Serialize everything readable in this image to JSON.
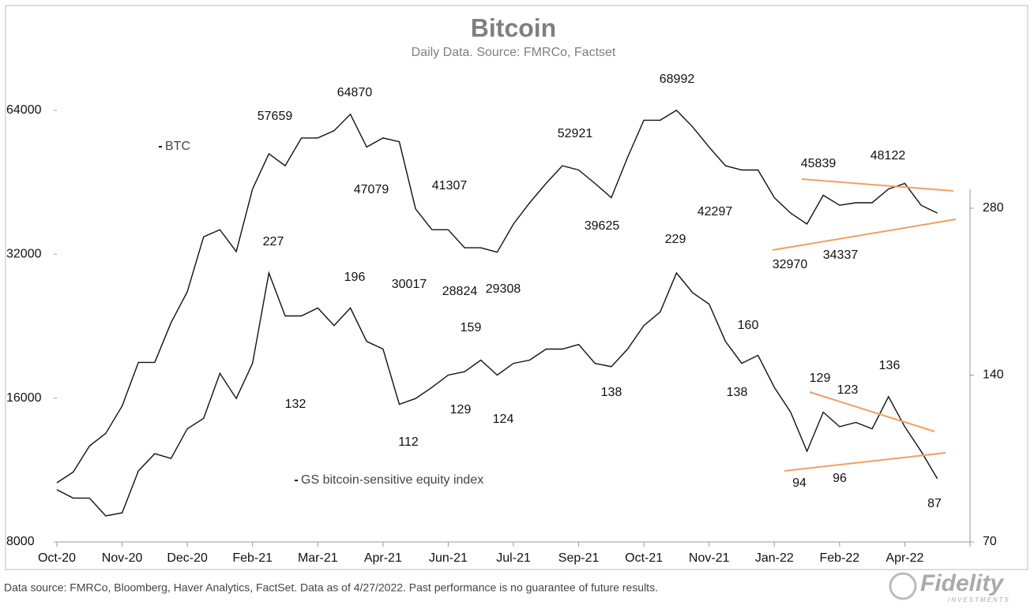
{
  "chart_data": {
    "type": "line",
    "title": "Bitcoin",
    "subtitle": "Daily Data. Source: FMRCo, Factset",
    "categories": [
      "Oct-20",
      null,
      null,
      null,
      "Nov-20",
      null,
      null,
      null,
      "Dec-20",
      null,
      null,
      null,
      "Feb-21",
      null,
      null,
      null,
      "Mar-21",
      null,
      null,
      null,
      "Apr-21",
      null,
      null,
      null,
      "Jun-21",
      null,
      null,
      null,
      "Jul-21",
      null,
      null,
      null,
      "Sep-21",
      null,
      null,
      null,
      "Oct-21",
      null,
      null,
      null,
      "Nov-21",
      null,
      null,
      null,
      "Jan-22",
      null,
      null,
      null,
      "Feb-22",
      null,
      null,
      null,
      "Apr-22",
      null,
      null,
      null,
      null
    ],
    "series": [
      {
        "name": "BTC",
        "color": "#111111",
        "values": [
          10640,
          11200,
          12700,
          13500,
          15400,
          19000,
          19000,
          23000,
          26700,
          34800,
          36000,
          32400,
          43800,
          51900,
          49000,
          56000,
          56000,
          58000,
          62800,
          53600,
          56000,
          55000,
          39800,
          36000,
          36000,
          33000,
          33000,
          32300,
          37000,
          41000,
          45000,
          49000,
          48000,
          45000,
          42000,
          51000,
          61000,
          61000,
          64000,
          59000,
          53600,
          49000,
          48000,
          48000,
          42000,
          39000,
          37000,
          42500,
          40500,
          41000,
          41000,
          43800,
          45000,
          40500,
          39000,
          null,
          null
        ]
      },
      {
        "name": "GS bitcoin-sensitive equity index",
        "color": "#111111",
        "axis": "y2",
        "values": [
          87,
          84,
          84,
          78,
          79,
          94,
          101,
          99,
          112,
          117,
          141,
          127,
          147,
          214,
          179,
          179,
          185,
          172,
          185,
          161,
          156,
          124,
          127,
          133,
          140,
          142,
          149,
          140,
          147,
          149,
          156,
          156,
          159,
          147,
          145,
          156,
          172,
          182,
          214,
          197,
          188,
          161,
          147,
          152,
          133,
          120,
          102,
          120,
          113,
          115,
          112,
          128,
          113,
          102,
          91,
          null,
          null
        ]
      }
    ],
    "ylim": [
      8000,
      106000
    ],
    "yticks": [
      8000,
      16000,
      32000,
      64000
    ],
    "y_log_scale": true,
    "y2lim": [
      70,
      650
    ],
    "y2ticks": [
      70,
      140,
      280
    ],
    "y2_log_scale": true,
    "annotations": [
      57659,
      64870,
      47079,
      41307,
      30017,
      28824,
      29308,
      52921,
      39625,
      68992,
      42297,
      45839,
      48122,
      32970,
      34337,
      227,
      196,
      132,
      112,
      159,
      129,
      124,
      138,
      229,
      160,
      138,
      129,
      123,
      136,
      94,
      96,
      87
    ],
    "trend_line_color": "#f0a060"
  },
  "footer": {
    "note": "Data source: FMRCo, Bloomberg, Haver Analytics, FactSet. Data as of 4/27/2022. Past performance is no guarantee of future results.",
    "brand": "Fidelity",
    "brand_sub": "INVESTMENTS"
  }
}
